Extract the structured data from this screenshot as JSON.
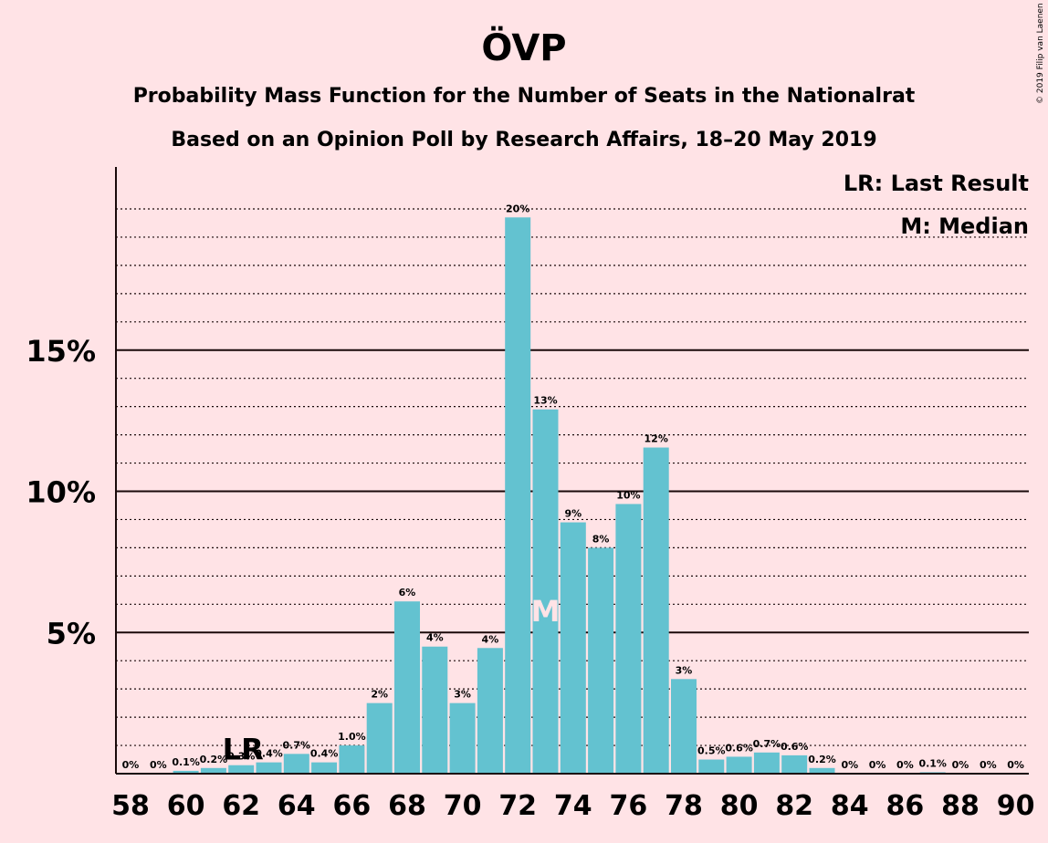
{
  "chart_data": {
    "type": "bar",
    "title": "ÖVP",
    "subtitle_lines": [
      "Probability Mass Function for the Number of Seats in the Nationalrat",
      "Based on an Opinion Poll by Research Affairs, 18–20 May 2019"
    ],
    "copyright": "© 2019 Filip van Laenen",
    "legend": [
      "LR: Last Result",
      "M: Median"
    ],
    "x": [
      58,
      59,
      60,
      61,
      62,
      63,
      64,
      65,
      66,
      67,
      68,
      69,
      70,
      71,
      72,
      73,
      74,
      75,
      76,
      77,
      78,
      79,
      80,
      81,
      82,
      83,
      84,
      85,
      86,
      87,
      88,
      89,
      90
    ],
    "values": [
      0,
      0,
      0.1,
      0.2,
      0.3,
      0.4,
      0.7,
      0.4,
      1.0,
      2.5,
      6.1,
      4.5,
      2.5,
      4.45,
      19.7,
      12.9,
      8.9,
      8.0,
      9.55,
      11.55,
      3.35,
      0.5,
      0.6,
      0.75,
      0.65,
      0.2,
      0,
      0,
      0,
      0.05,
      0,
      0,
      0
    ],
    "data_labels": [
      "0%",
      "0%",
      "0.1%",
      "0.2%",
      "0.3%",
      "0.4%",
      "0.7%",
      "0.4%",
      "1.0%",
      "2%",
      "6%",
      "4%",
      "3%",
      "4%",
      "20%",
      "13%",
      "9%",
      "8%",
      "10%",
      "12%",
      "3%",
      "0.5%",
      "0.6%",
      "0.7%",
      "0.6%",
      "0.2%",
      "0%",
      "0%",
      "0%",
      "0.1%",
      "0%",
      "0%",
      "0%"
    ],
    "x_tick_labels": [
      "58",
      "60",
      "62",
      "64",
      "66",
      "68",
      "70",
      "72",
      "74",
      "76",
      "78",
      "80",
      "82",
      "84",
      "86",
      "88",
      "90"
    ],
    "y_ticks": [
      {
        "value": 5,
        "label": "5%"
      },
      {
        "value": 10,
        "label": "10%"
      },
      {
        "value": 15,
        "label": "15%"
      }
    ],
    "ylim": [
      0,
      21.5
    ],
    "minor_gridlines": true,
    "last_result": {
      "seat": 62,
      "label": "LR"
    },
    "median": {
      "seat": 73,
      "label": "M"
    },
    "colors": {
      "bar": "#63C2D0",
      "background": "#FFE3E6",
      "text": "#1a0a0a"
    }
  }
}
